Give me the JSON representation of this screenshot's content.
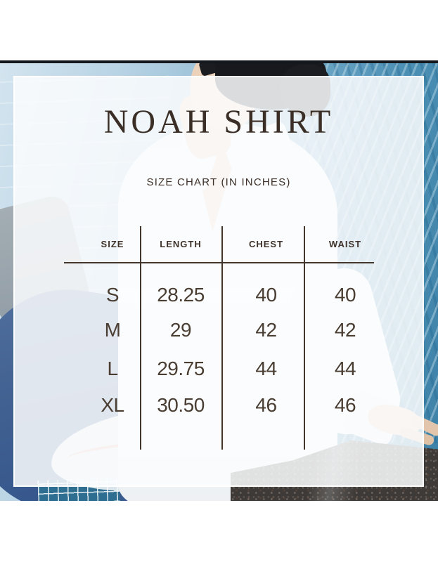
{
  "chart_data": {
    "type": "table",
    "title": "NOAH SHIRT",
    "subtitle": "SIZE CHART (IN INCHES)",
    "unit": "inches",
    "columns": [
      "SIZE",
      "LENGTH",
      "CHEST",
      "WAIST"
    ],
    "rows": [
      [
        "S",
        "28.25",
        "40",
        "40"
      ],
      [
        "M",
        "29",
        "42",
        "42"
      ],
      [
        "L",
        "29.75",
        "44",
        "44"
      ],
      [
        "XL",
        "30.50",
        "46",
        "46"
      ]
    ]
  },
  "colors": {
    "text_brown": "#3b2f27",
    "table_line": "#42362d",
    "panel_overlay": "rgba(252,253,254,0.86)",
    "pool_water_light": "#b9d4e5",
    "pool_water_deep": "#3d81a8"
  },
  "background_photo": {
    "description": "man in white shirt and sunglasses sitting at pool edge on dark granite, blue water behind"
  }
}
